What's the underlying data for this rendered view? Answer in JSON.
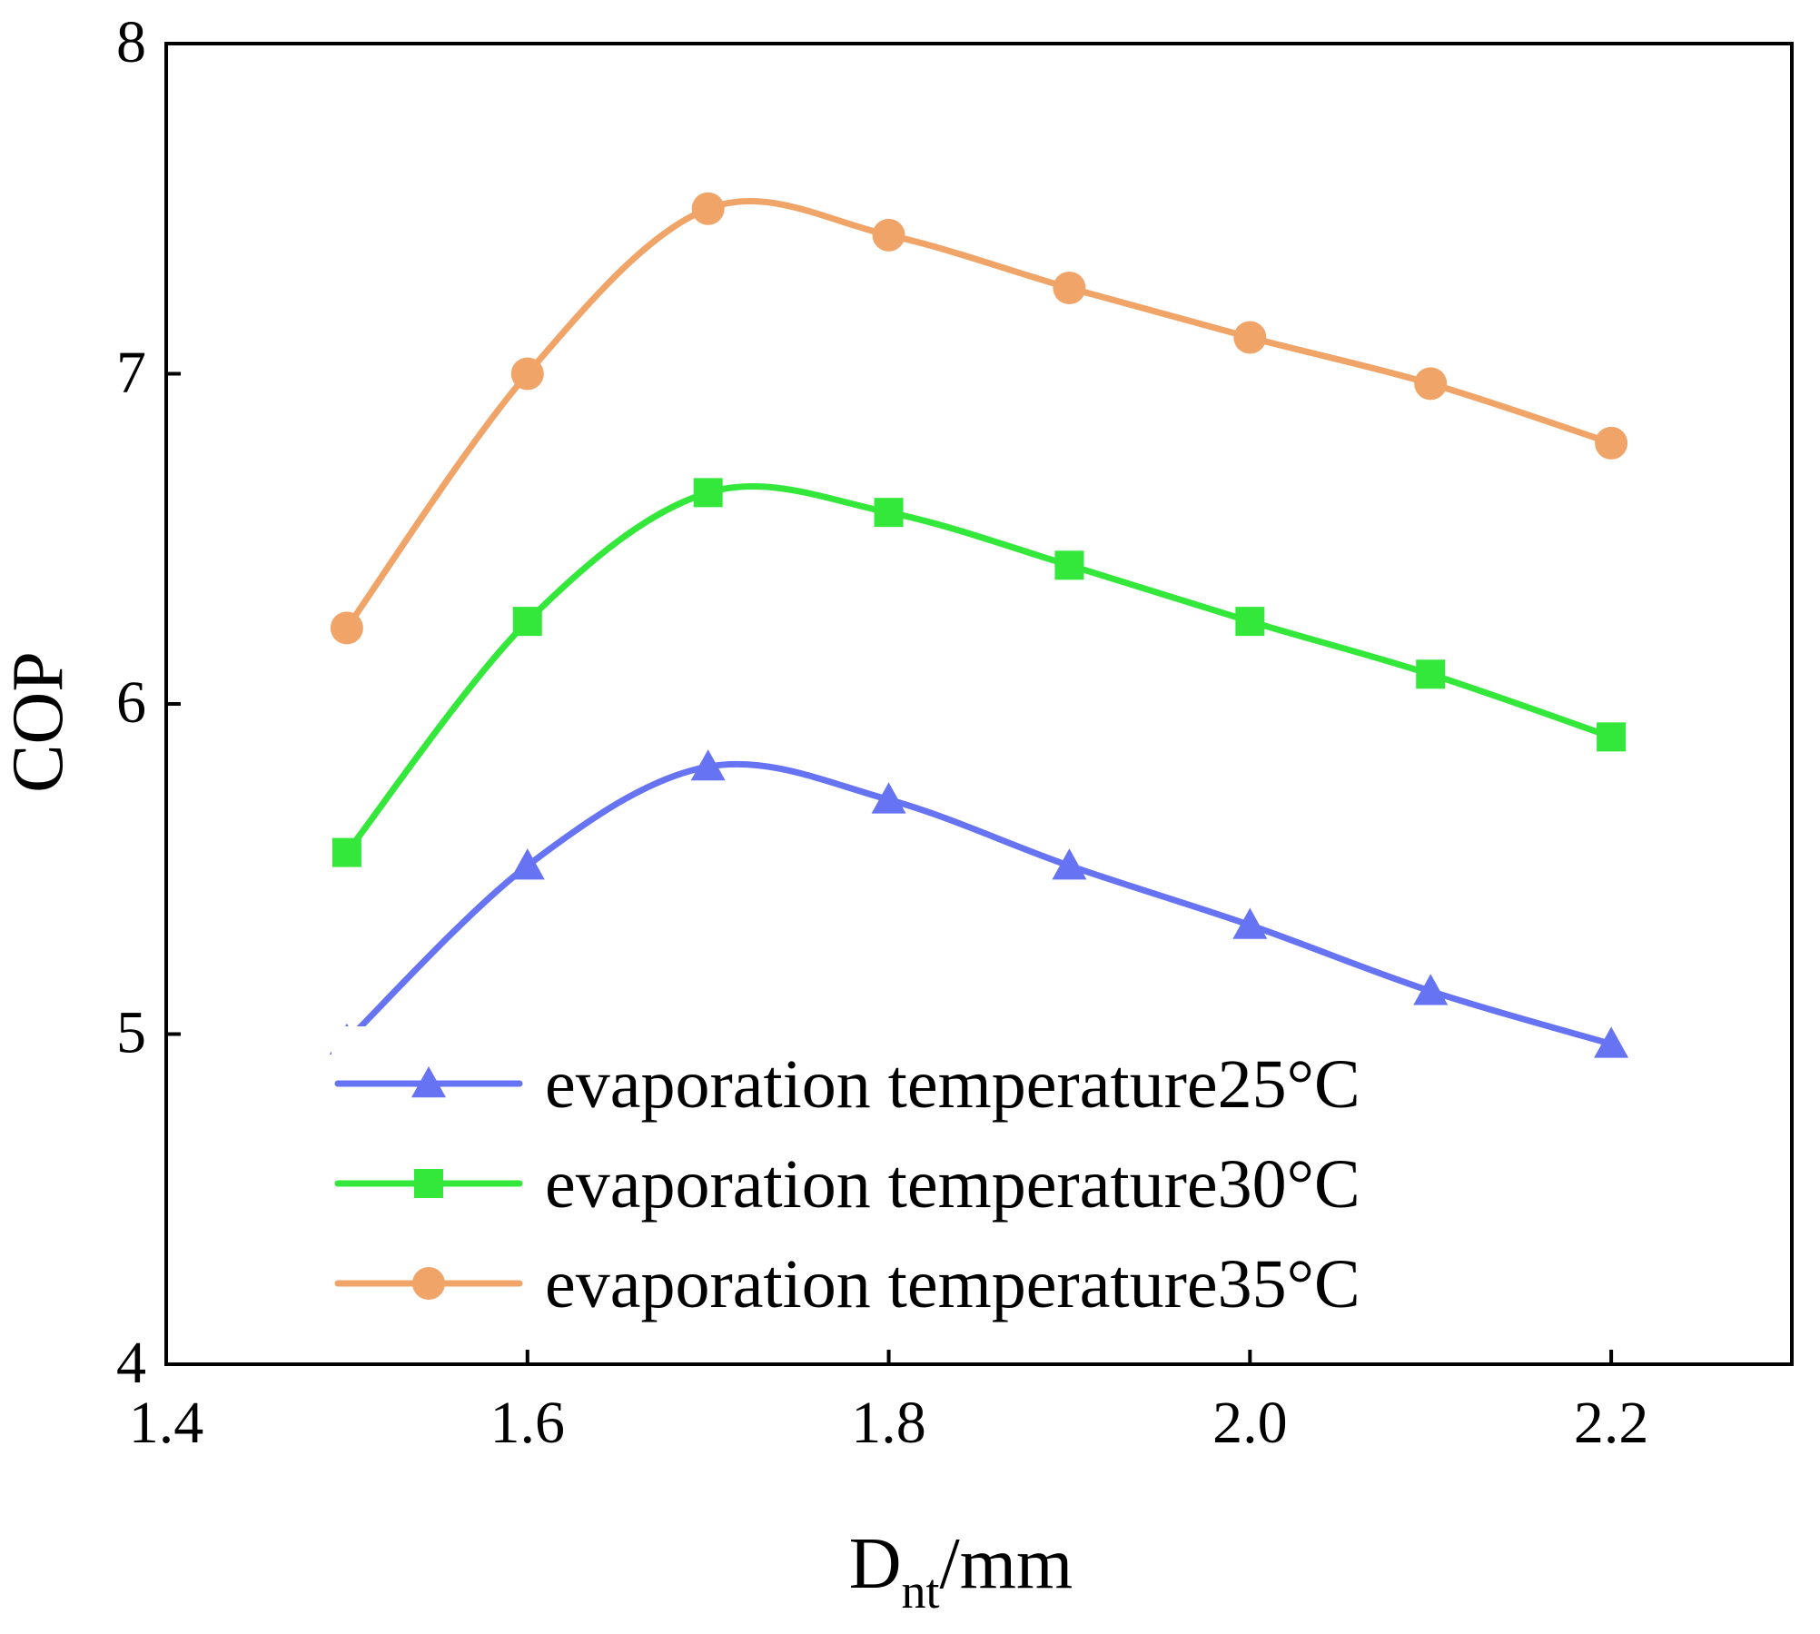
{
  "chart_data": {
    "type": "line",
    "title": "",
    "xlabel": "D",
    "xlabel_sub": "nt",
    "xlabel_unit": "/mm",
    "ylabel": "COP",
    "xlim": [
      1.4,
      2.3
    ],
    "ylim": [
      4,
      8
    ],
    "xticks": [
      1.4,
      1.6,
      1.8,
      2.0,
      2.2
    ],
    "xtick_labels": [
      "1.4",
      "1.6",
      "1.8",
      "2.0",
      "2.2"
    ],
    "yticks": [
      4,
      5,
      6,
      7,
      8
    ],
    "ytick_labels": [
      "4",
      "5",
      "6",
      "7",
      "8"
    ],
    "grid": false,
    "legend_position": "bottom-left",
    "x": [
      1.5,
      1.6,
      1.7,
      1.8,
      1.9,
      2.0,
      2.1,
      2.2
    ],
    "series": [
      {
        "name": "evaporation temperature25°C",
        "color": "#6673f2",
        "marker": "triangle",
        "values": [
          4.98,
          5.51,
          5.81,
          5.71,
          5.51,
          5.33,
          5.13,
          4.97
        ]
      },
      {
        "name": "evaporation temperature30°C",
        "color": "#33e83a",
        "marker": "square",
        "values": [
          5.55,
          6.25,
          6.64,
          6.58,
          6.42,
          6.25,
          6.09,
          5.9
        ]
      },
      {
        "name": "evaporation temperature35°C",
        "color": "#f0a468",
        "marker": "circle",
        "values": [
          6.23,
          7.0,
          7.5,
          7.42,
          7.26,
          7.11,
          6.97,
          6.79
        ]
      }
    ]
  }
}
